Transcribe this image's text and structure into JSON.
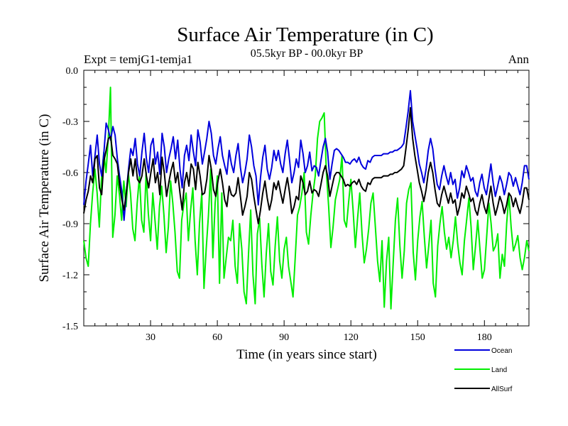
{
  "chart_data": {
    "type": "line",
    "title": "Surface Air Temperature (in C)",
    "subtitle": "05.5kyr BP - 00.0kyr BP",
    "experiment_label": "Expt = temjG1-temja1",
    "season_label": "Ann",
    "xlabel": "Time (in years since start)",
    "ylabel": "Surface Air Temperature (in C)",
    "xlim": [
      0,
      200
    ],
    "ylim": [
      -1.5,
      0.0
    ],
    "xticks": [
      30,
      60,
      90,
      120,
      150,
      180
    ],
    "xtick_labels": [
      "30",
      "60",
      "90",
      "120",
      "150",
      "180"
    ],
    "yticks": [
      0.0,
      -0.3,
      -0.6,
      -0.9,
      -1.2,
      -1.5
    ],
    "ytick_labels": [
      "0.0",
      "-0.3",
      "-0.6",
      "-0.9",
      "-1.2",
      "-1.5"
    ],
    "grid": false,
    "legend_position": "bottom-right outside",
    "series": [
      {
        "name": "Ocean",
        "color": "#0000dd",
        "values": [
          -0.79,
          -0.65,
          -0.55,
          -0.44,
          -0.62,
          -0.5,
          -0.38,
          -0.55,
          -0.62,
          -0.48,
          -0.31,
          -0.35,
          -0.41,
          -0.33,
          -0.38,
          -0.52,
          -0.62,
          -0.71,
          -0.88,
          -0.72,
          -0.58,
          -0.46,
          -0.5,
          -0.4,
          -0.55,
          -0.62,
          -0.48,
          -0.37,
          -0.52,
          -0.6,
          -0.44,
          -0.4,
          -0.55,
          -0.48,
          -0.61,
          -0.37,
          -0.45,
          -0.6,
          -0.52,
          -0.46,
          -0.39,
          -0.52,
          -0.41,
          -0.58,
          -0.69,
          -0.5,
          -0.44,
          -0.53,
          -0.38,
          -0.48,
          -0.56,
          -0.35,
          -0.42,
          -0.55,
          -0.48,
          -0.4,
          -0.3,
          -0.37,
          -0.5,
          -0.55,
          -0.46,
          -0.39,
          -0.5,
          -0.56,
          -0.61,
          -0.47,
          -0.55,
          -0.6,
          -0.5,
          -0.43,
          -0.57,
          -0.66,
          -0.6,
          -0.52,
          -0.38,
          -0.45,
          -0.56,
          -0.62,
          -0.79,
          -0.63,
          -0.51,
          -0.44,
          -0.58,
          -0.64,
          -0.57,
          -0.47,
          -0.53,
          -0.47,
          -0.55,
          -0.6,
          -0.49,
          -0.41,
          -0.53,
          -0.66,
          -0.6,
          -0.52,
          -0.57,
          -0.41,
          -0.49,
          -0.6,
          -0.56,
          -0.48,
          -0.59,
          -0.56,
          -0.57,
          -0.62,
          -0.53,
          -0.45,
          -0.4,
          -0.48,
          -0.64,
          -0.55,
          -0.47,
          -0.46,
          -0.47,
          -0.49,
          -0.51,
          -0.54,
          -0.54,
          -0.55,
          -0.53,
          -0.52,
          -0.54,
          -0.51,
          -0.55,
          -0.57,
          -0.58,
          -0.53,
          -0.54,
          -0.51,
          -0.5,
          -0.5,
          -0.5,
          -0.5,
          -0.49,
          -0.49,
          -0.49,
          -0.48,
          -0.48,
          -0.47,
          -0.47,
          -0.46,
          -0.45,
          -0.43,
          -0.34,
          -0.24,
          -0.12,
          -0.3,
          -0.38,
          -0.46,
          -0.55,
          -0.6,
          -0.66,
          -0.58,
          -0.47,
          -0.4,
          -0.46,
          -0.58,
          -0.67,
          -0.7,
          -0.62,
          -0.56,
          -0.62,
          -0.67,
          -0.6,
          -0.67,
          -0.64,
          -0.75,
          -0.69,
          -0.59,
          -0.63,
          -0.56,
          -0.6,
          -0.65,
          -0.63,
          -0.71,
          -0.74,
          -0.66,
          -0.61,
          -0.69,
          -0.73,
          -0.64,
          -0.55,
          -0.66,
          -0.74,
          -0.68,
          -0.62,
          -0.66,
          -0.73,
          -0.67,
          -0.6,
          -0.62,
          -0.68,
          -0.63,
          -0.68,
          -0.73,
          -0.66,
          -0.56,
          -0.56,
          -0.64
        ]
      },
      {
        "name": "Land",
        "color": "#00ee00",
        "values": [
          -1.0,
          -1.1,
          -1.15,
          -0.9,
          -0.72,
          -0.58,
          -0.72,
          -0.92,
          -0.62,
          -0.48,
          -0.6,
          -0.4,
          -0.1,
          -0.98,
          -0.85,
          -0.62,
          -0.73,
          -0.88,
          -0.65,
          -0.8,
          -0.6,
          -0.72,
          -0.93,
          -1.0,
          -0.78,
          -0.62,
          -0.88,
          -0.95,
          -0.6,
          -0.84,
          -1.0,
          -0.72,
          -0.88,
          -1.05,
          -0.8,
          -0.68,
          -0.85,
          -1.07,
          -0.92,
          -0.65,
          -0.78,
          -0.95,
          -1.18,
          -1.22,
          -0.88,
          -0.78,
          -0.72,
          -1.0,
          -0.82,
          -0.69,
          -1.0,
          -1.2,
          -0.9,
          -0.72,
          -1.28,
          -1.05,
          -0.85,
          -0.58,
          -1.1,
          -0.78,
          -0.62,
          -1.25,
          -0.72,
          -1.22,
          -1.1,
          -0.98,
          -1.0,
          -0.88,
          -1.15,
          -1.25,
          -0.9,
          -1.05,
          -1.3,
          -1.37,
          -1.08,
          -0.82,
          -1.2,
          -1.37,
          -0.96,
          -0.87,
          -1.14,
          -1.33,
          -1.07,
          -0.9,
          -1.18,
          -1.26,
          -1.03,
          -0.86,
          -1.12,
          -1.22,
          -1.05,
          -0.98,
          -1.15,
          -1.24,
          -1.33,
          -1.1,
          -0.85,
          -0.8,
          -0.72,
          -0.6,
          -0.95,
          -1.02,
          -0.85,
          -0.72,
          -0.62,
          -0.4,
          -0.3,
          -0.28,
          -0.25,
          -0.6,
          -0.8,
          -1.04,
          -0.92,
          -0.76,
          -0.7,
          -0.64,
          -0.5,
          -0.88,
          -0.92,
          -0.77,
          -0.64,
          -0.82,
          -1.04,
          -0.87,
          -0.72,
          -0.96,
          -1.13,
          -1.05,
          -0.93,
          -0.78,
          -0.72,
          -0.92,
          -1.12,
          -1.24,
          -1.0,
          -1.39,
          -1.12,
          -0.98,
          -1.4,
          -1.13,
          -0.88,
          -0.75,
          -1.03,
          -1.22,
          -1.06,
          -0.78,
          -0.7,
          -0.66,
          -1.07,
          -1.23,
          -1.0,
          -0.86,
          -0.77,
          -0.98,
          -1.16,
          -1.03,
          -0.88,
          -1.25,
          -1.33,
          -1.03,
          -0.9,
          -0.8,
          -0.95,
          -1.05,
          -0.98,
          -1.1,
          -1.0,
          -0.86,
          -1.02,
          -1.13,
          -1.2,
          -1.0,
          -0.88,
          -0.75,
          -0.92,
          -1.17,
          -1.03,
          -0.88,
          -1.05,
          -1.22,
          -1.17,
          -0.98,
          -0.78,
          -0.9,
          -1.06,
          -1.03,
          -0.96,
          -1.22,
          -1.08,
          -1.15,
          -0.9,
          -0.73,
          -0.92,
          -1.06,
          -1.02,
          -0.97,
          -1.1,
          -1.17,
          -1.1,
          -1.0,
          -1.06
        ]
      },
      {
        "name": "AllSurf",
        "color": "#000000",
        "values": [
          -0.84,
          -0.76,
          -0.71,
          -0.62,
          -0.66,
          -0.52,
          -0.5,
          -0.69,
          -0.73,
          -0.53,
          -0.47,
          -0.4,
          -0.39,
          -0.5,
          -0.52,
          -0.55,
          -0.67,
          -0.76,
          -0.82,
          -0.72,
          -0.6,
          -0.52,
          -0.62,
          -0.52,
          -0.64,
          -0.66,
          -0.62,
          -0.52,
          -0.62,
          -0.69,
          -0.6,
          -0.52,
          -0.66,
          -0.6,
          -0.73,
          -0.51,
          -0.6,
          -0.74,
          -0.66,
          -0.59,
          -0.54,
          -0.66,
          -0.6,
          -0.72,
          -0.82,
          -0.66,
          -0.6,
          -0.68,
          -0.55,
          -0.58,
          -0.7,
          -0.54,
          -0.62,
          -0.73,
          -0.72,
          -0.64,
          -0.5,
          -0.58,
          -0.7,
          -0.74,
          -0.65,
          -0.58,
          -0.66,
          -0.76,
          -0.8,
          -0.68,
          -0.73,
          -0.74,
          -0.72,
          -0.63,
          -0.74,
          -0.85,
          -0.8,
          -0.74,
          -0.6,
          -0.64,
          -0.74,
          -0.82,
          -0.9,
          -0.82,
          -0.72,
          -0.65,
          -0.75,
          -0.82,
          -0.76,
          -0.66,
          -0.7,
          -0.65,
          -0.72,
          -0.78,
          -0.7,
          -0.63,
          -0.72,
          -0.84,
          -0.8,
          -0.74,
          -0.76,
          -0.62,
          -0.66,
          -0.73,
          -0.71,
          -0.65,
          -0.72,
          -0.7,
          -0.71,
          -0.74,
          -0.67,
          -0.6,
          -0.56,
          -0.62,
          -0.74,
          -0.68,
          -0.62,
          -0.6,
          -0.6,
          -0.62,
          -0.64,
          -0.68,
          -0.67,
          -0.68,
          -0.66,
          -0.65,
          -0.67,
          -0.64,
          -0.68,
          -0.7,
          -0.71,
          -0.66,
          -0.67,
          -0.64,
          -0.63,
          -0.63,
          -0.63,
          -0.63,
          -0.62,
          -0.62,
          -0.62,
          -0.61,
          -0.61,
          -0.6,
          -0.6,
          -0.59,
          -0.58,
          -0.56,
          -0.46,
          -0.35,
          -0.22,
          -0.4,
          -0.5,
          -0.58,
          -0.66,
          -0.71,
          -0.77,
          -0.7,
          -0.6,
          -0.54,
          -0.6,
          -0.7,
          -0.78,
          -0.8,
          -0.73,
          -0.68,
          -0.73,
          -0.78,
          -0.72,
          -0.78,
          -0.76,
          -0.85,
          -0.8,
          -0.72,
          -0.75,
          -0.68,
          -0.72,
          -0.77,
          -0.75,
          -0.82,
          -0.85,
          -0.78,
          -0.73,
          -0.8,
          -0.84,
          -0.76,
          -0.68,
          -0.78,
          -0.85,
          -0.8,
          -0.74,
          -0.78,
          -0.84,
          -0.79,
          -0.72,
          -0.74,
          -0.8,
          -0.75,
          -0.8,
          -0.84,
          -0.78,
          -0.69,
          -0.69,
          -0.76
        ]
      }
    ]
  }
}
